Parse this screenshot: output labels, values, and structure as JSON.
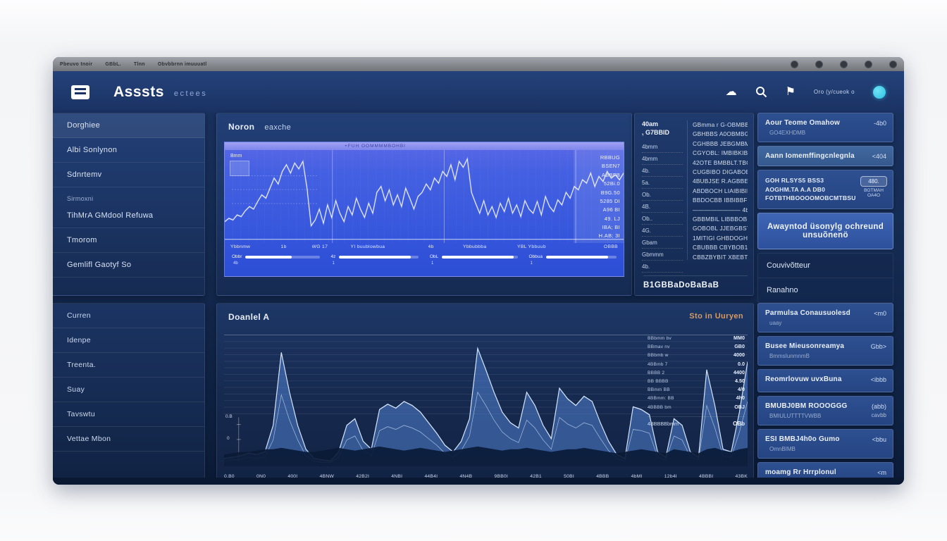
{
  "accent": {
    "bright_chart_blue": "#3b5ce0",
    "header_blue": "#203d72",
    "avatar_cyan": "#2bc2e4",
    "link_orange": "#d79a61",
    "line_white": "#ffffff",
    "area_fill": "#568ade"
  },
  "menubar": {
    "items": [
      "Pbeuvo tnoir",
      "GBbL.",
      "Tlnn",
      "Obvbbrnn imuuuatl"
    ]
  },
  "header": {
    "title": "Asssts",
    "subtitle": "ectees",
    "account_label": "Oro (y/cueok o"
  },
  "sidebar": {
    "primary": [
      {
        "label": "Dorghiee",
        "variant": "item--first"
      },
      {
        "label": "Albi Sonlynon",
        "variant": ""
      },
      {
        "label": "Sdnrtemv",
        "variant": ""
      },
      {
        "label": "Sirmoxni",
        "variant": "item--caption"
      },
      {
        "label": "TihMrA GMdool Refuwa",
        "variant": ""
      },
      {
        "label": "Tmorom",
        "variant": ""
      },
      {
        "label": "Gemlifl Gaotyf So",
        "variant": ""
      }
    ],
    "secondary": [
      {
        "label": "Curren"
      },
      {
        "label": "Idenpe"
      },
      {
        "label": "Treenta."
      },
      {
        "label": "Suay"
      },
      {
        "label": "Tavswtu"
      },
      {
        "label": "Vettae Mbon"
      }
    ]
  },
  "top_panel": {
    "title": "Noron",
    "title2": "eaxche",
    "toolbar_note": "+FUH  OOMMMMBOHBI",
    "corner_label": "Bmm",
    "y_ticks": [
      "RBBUG",
      "BSEN7",
      "ABBFB",
      "52Bi.0",
      "B9G.50",
      "5285 DI",
      "A96 BI",
      "49. LJ",
      "IBA; BI",
      "H.AB; 3I"
    ],
    "x_ticks": [
      "Ybbnmw",
      "1b",
      "WG 17",
      "YI buublowbua",
      "4b",
      "Ybbubbba",
      "YBL Ybbuub",
      "OBBB"
    ],
    "sliders": [
      {
        "label": "Obbr",
        "sub": "4b",
        "value": 62
      },
      {
        "label": "4z",
        "sub": "1",
        "value": 90
      },
      {
        "label": "ObL",
        "sub": "1",
        "value": 95
      },
      {
        "label": "Obbua",
        "sub": "1",
        "value": 88
      }
    ]
  },
  "watchlist": {
    "header_line1": "40am",
    "header_line2": ", G7BBID",
    "items": [
      "4bmm",
      "4bmm",
      "4b.",
      "5a.",
      "Ob.",
      "4B.",
      "Ob..",
      "4G.",
      "Gbam",
      "Gbmmm",
      "4b."
    ],
    "rows": [
      "GBmma r G-OBMBBTB",
      "GBHBBS A0OBMBGL.",
      "CGHBBB JEBGMBMBD",
      "CGYOBL: IMBIBKIBID",
      "42OTE BMBBLT.TBO",
      "CUGBIBO DIGABOBLBU",
      "4BUBJSE R.AGBBETBO",
      "ABDBOCH LIAIBIBIBVO",
      "BBDOCBB IBBIBBFBI",
      "————————   4b1",
      "GBBMBIL LIBBBOBLIT",
      "GOBOBL JJEBGBST EB",
      "1MITIGI GHBDOGHO",
      "CBUBBB  CBYBOB1 BJL",
      "CBBZBYBIT XBEBTBZI"
    ],
    "total": "B1GBBaDoBaBaB"
  },
  "orders": {
    "card1": {
      "title": "Aour Teome Omahow",
      "subtitle": "GO4EXHDMB",
      "value": "-4b0"
    },
    "card2": {
      "title": "Aann Iomemffingcnlegnla",
      "value": "<404"
    },
    "card3": {
      "lines": [
        "GOH RLSYS5 BSS3",
        "AOGHM.TA A.A DB0",
        "FOTBTHBOOOOMOBCMTBSU"
      ],
      "badge": {
        "value": "480.",
        "line2": "BOTMAH",
        "line3": "OA4O"
      }
    },
    "button_label": "Awayntod üsonylg ochreund unsuõnenö",
    "links": [
      "Couvivõtteur",
      "Ranahno"
    ],
    "bottom_cards": [
      {
        "title": "Parmulsa Conausuolesd",
        "subtitle": "uaay",
        "value": "<m0",
        "value2": ""
      },
      {
        "title": "Busee Mieusonreamya",
        "subtitle": "BmmsIunmnmB",
        "value": "Gbb>",
        "value2": ""
      },
      {
        "title": "Reomrlovuw uvxBuna",
        "subtitle": "",
        "value": "<ibbb",
        "value2": ""
      },
      {
        "title": "BMUBJ0BM ROOOGGG",
        "subtitle": "BMIULUTTTTVWBB",
        "value": "(abb)",
        "value2": "cavbb"
      },
      {
        "title": "ESI BMBJ4h0o Gumo",
        "subtitle": "OmnBIMB",
        "value": "<bbu",
        "value2": ""
      },
      {
        "title": "moamg Rr Hrrplonul",
        "subtitle": "",
        "value": "<m",
        "value2": ""
      }
    ]
  },
  "bottom_panel": {
    "title": "Doanlel A",
    "link": "Sto in Uuryen",
    "y_labels": [
      "0.B",
      "0"
    ],
    "x_ticks": [
      "0.B0",
      "0N0",
      "400I",
      "4BNW",
      "42B2I",
      "4NBI",
      "44B4I",
      "4N4B",
      "9BB0I",
      "42B1",
      "50BI",
      "4BBB",
      "4bMI",
      "12b4I",
      "4BBBI",
      "43BK"
    ],
    "stats": [
      {
        "label": "BBbmm bv",
        "value": "MM0"
      },
      {
        "label": "BBmav nv",
        "value": "GB0"
      },
      {
        "label": "BBbmb w",
        "value": "4000"
      },
      {
        "label": "4BBmb 7",
        "value": "0.0"
      },
      {
        "label": "BBBB 2",
        "value": "4400"
      },
      {
        "label": "BB BBBB",
        "value": "4.50"
      },
      {
        "label": "BBmm BB",
        "value": "4/0"
      },
      {
        "label": "4BBmm: BB",
        "value": "4h0"
      },
      {
        "label": "4BBBB bm",
        "value": "OBJ"
      }
    ],
    "stats_footer": {
      "label": "4BBBBBbmm",
      "value": "OBb"
    }
  },
  "chart_data": [
    {
      "type": "line",
      "title": "Noron eaxche",
      "ylabel_ticks": [
        "RBBUG",
        "BSEN7",
        "ABBFB",
        "52Bi.0",
        "B9G.50",
        "5285 DI",
        "A96 BI",
        "49. LJ",
        "IBA; BI",
        "H.AB; 3I"
      ],
      "x_ticks": [
        "Ybbnmw",
        "1b",
        "WG 17",
        "YI buublowbua",
        "4b",
        "Ybbubbba",
        "YBL Ybbuub",
        "OBBB"
      ],
      "ylim": [
        0,
        100
      ],
      "grid": "vertical",
      "section_lines_pct": [
        27,
        55,
        88
      ],
      "series": [
        {
          "name": "price",
          "values": [
            20,
            24,
            22,
            28,
            26,
            33,
            38,
            35,
            44,
            52,
            48,
            60,
            72,
            65,
            80,
            88,
            78,
            90,
            83,
            92,
            60,
            15,
            22,
            35,
            18,
            40,
            25,
            45,
            30,
            20,
            38,
            28,
            48,
            35,
            25,
            42,
            30,
            55,
            62,
            45,
            58,
            40,
            52,
            38,
            60,
            48,
            35,
            50,
            55,
            65,
            58,
            72,
            66,
            80,
            74,
            88,
            70,
            92,
            85,
            95,
            55,
            42,
            30,
            45,
            28,
            38,
            25,
            42,
            32,
            48,
            30,
            40,
            26,
            45,
            35,
            30,
            44,
            28,
            50,
            38,
            32,
            46,
            40,
            55,
            48,
            62,
            58,
            70,
            66,
            78,
            62,
            74,
            68,
            80,
            72,
            76,
            70,
            78
          ]
        }
      ]
    },
    {
      "type": "area",
      "title": "Doanlel A",
      "ylim": [
        0,
        100
      ],
      "grid": "horizontal",
      "x_ticks": [
        "0.B0",
        "0N0",
        "400I",
        "4BNW",
        "42B2I",
        "4NBI",
        "44B4I",
        "4N4B",
        "9BB0I",
        "42B1",
        "50BI",
        "4BBB",
        "4bMI",
        "12b4I",
        "4BBBI",
        "43BK"
      ],
      "series": [
        {
          "name": "main",
          "values": [
            5,
            6,
            7,
            9,
            8,
            10,
            30,
            85,
            55,
            30,
            12,
            5,
            4,
            3,
            10,
            30,
            35,
            18,
            12,
            42,
            46,
            43,
            48,
            45,
            40,
            32,
            24,
            15,
            10,
            18,
            35,
            88,
            72,
            55,
            40,
            32,
            28,
            55,
            45,
            30,
            20,
            58,
            50,
            45,
            52,
            48,
            32,
            18,
            8,
            5,
            44,
            42,
            38,
            10,
            6,
            35,
            30,
            10,
            6,
            72,
            45,
            12,
            10,
            40,
            78
          ]
        },
        {
          "name": "secondary",
          "values": [
            3,
            4,
            4,
            6,
            5,
            6,
            19,
            53,
            34,
            19,
            7,
            3,
            2,
            2,
            6,
            19,
            22,
            11,
            7,
            26,
            29,
            27,
            30,
            28,
            25,
            20,
            15,
            9,
            6,
            11,
            22,
            55,
            45,
            34,
            25,
            20,
            17,
            34,
            28,
            19,
            12,
            36,
            31,
            28,
            32,
            30,
            20,
            11,
            5,
            3,
            27,
            26,
            24,
            6,
            4,
            22,
            19,
            6,
            4,
            45,
            28,
            7,
            6,
            25,
            48
          ]
        },
        {
          "name": "dark_base",
          "values": [
            8,
            9,
            10,
            10,
            11,
            12,
            12,
            13,
            12,
            11,
            10,
            10,
            11,
            12,
            13,
            12,
            11,
            12,
            13,
            14,
            13,
            12,
            11,
            12,
            13,
            12,
            11,
            10,
            11,
            12,
            13,
            14,
            13,
            12,
            11,
            12,
            12,
            13,
            12,
            11,
            10,
            11,
            12,
            12,
            13,
            12,
            11,
            10,
            9,
            10,
            11,
            12,
            11,
            10,
            9,
            12,
            11,
            10,
            9,
            12,
            13,
            11,
            10,
            12,
            13
          ]
        }
      ]
    }
  ]
}
